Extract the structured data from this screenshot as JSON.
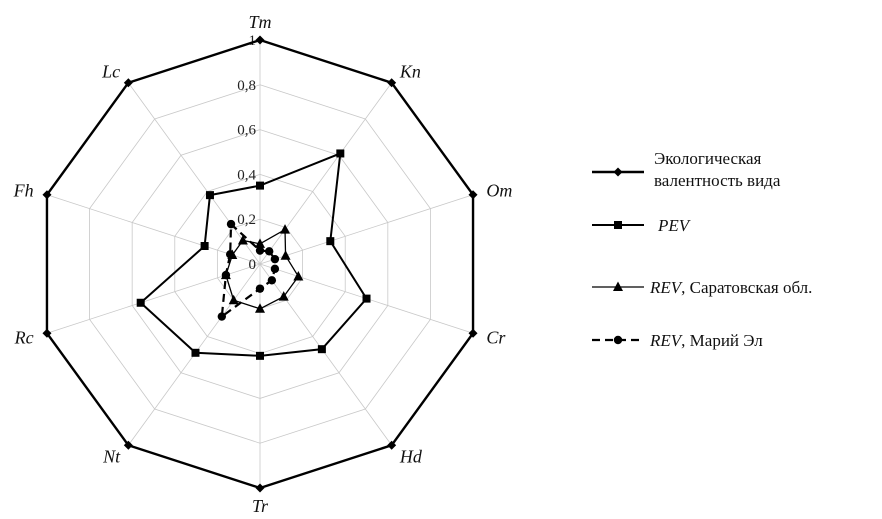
{
  "chart_data": {
    "type": "radar",
    "axes": [
      "Tm",
      "Kn",
      "Om",
      "Cr",
      "Hd",
      "Tr",
      "Nt",
      "Rc",
      "Fh",
      "Lc"
    ],
    "rlim": [
      0,
      1
    ],
    "ticks": [
      "0",
      "0,2",
      "0,4",
      "0,6",
      "0,8",
      "1"
    ],
    "tick_values": [
      0,
      0.2,
      0.4,
      0.6,
      0.8,
      1
    ],
    "grid": true,
    "legend_position": "right",
    "series": [
      {
        "name_lines": [
          "Экологическая",
          "валентность вида"
        ],
        "values": [
          1,
          1,
          1,
          1,
          1,
          1,
          1,
          1,
          1,
          1
        ],
        "marker": "diamond",
        "line": "solid",
        "width": 2.4
      },
      {
        "name": "PEV",
        "name_italic": true,
        "values": [
          0.35,
          0.61,
          0.33,
          0.5,
          0.47,
          0.41,
          0.49,
          0.56,
          0.26,
          0.38
        ],
        "marker": "square",
        "line": "solid",
        "width": 2.0
      },
      {
        "name_it": "REV",
        "name_rest": ", Саратовская обл.",
        "values": [
          0.09,
          0.19,
          0.12,
          0.18,
          0.18,
          0.2,
          0.2,
          0.16,
          0.13,
          0.13
        ],
        "marker": "triangle",
        "line": "solid",
        "width": 1.3
      },
      {
        "name_it": "REV",
        "name_rest": ", Марий Эл",
        "values": [
          0.06,
          0.07,
          0.07,
          0.07,
          0.09,
          0.11,
          0.29,
          0.16,
          0.14,
          0.22
        ],
        "marker": "circle",
        "line": "dashed",
        "width": 2.2
      }
    ]
  }
}
